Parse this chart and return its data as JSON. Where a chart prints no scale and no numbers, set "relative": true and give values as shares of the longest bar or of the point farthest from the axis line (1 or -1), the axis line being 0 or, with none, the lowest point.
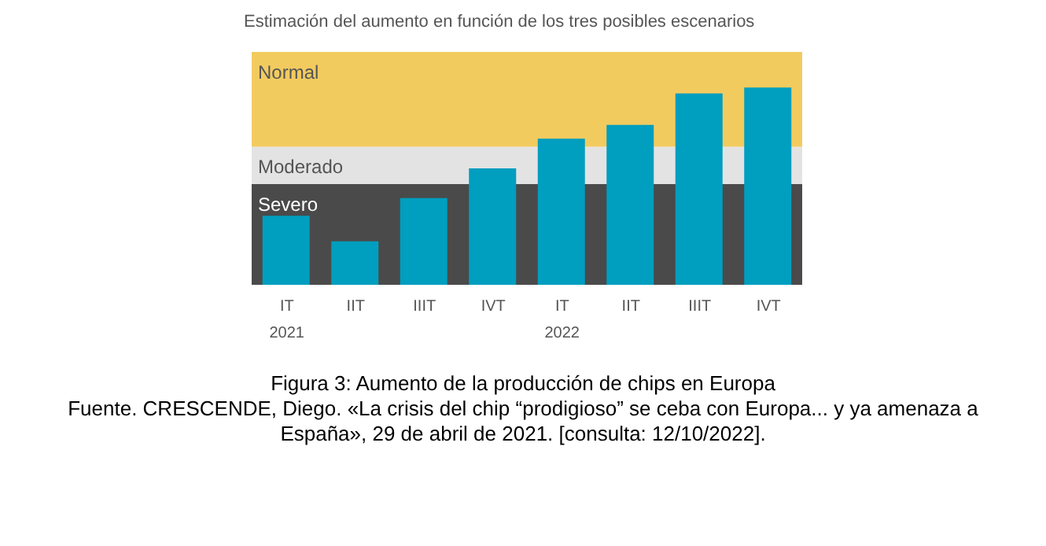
{
  "chart_data": {
    "type": "bar",
    "title": "Estimación del aumento en función de los tres posibles escenarios",
    "relative": true,
    "categories": [
      "IT\n2021",
      "IIT",
      "IIIT",
      "IVT",
      "IT\n2022",
      "IIT",
      "IIIT",
      "IVT"
    ],
    "values": [
      0.35,
      0.22,
      0.44,
      0.59,
      0.74,
      0.81,
      0.97,
      1
    ],
    "color": "#009ebf",
    "bands": [
      {
        "axis": "y",
        "from": 0,
        "to": 0.51,
        "label": "Severo",
        "color": "#4a4a4a"
      },
      {
        "axis": "y",
        "from": 0.51,
        "to": 0.7,
        "label": "Moderado",
        "color": "#e3e3e3"
      },
      {
        "axis": "y",
        "from": 0.7,
        "to": 1.18,
        "label": "Normal",
        "color": "#f2cb5f"
      }
    ],
    "annotations": [
      "Figura 3: Aumento de la producción de chips en Europa",
      "Fuente. CRESCENDE, Diego. «La crisis del chip “prodigioso” se ceba con Europa... y ya amenaza a España», 29 de abril de 2021. [consulta: 12/10/2022]."
    ]
  }
}
